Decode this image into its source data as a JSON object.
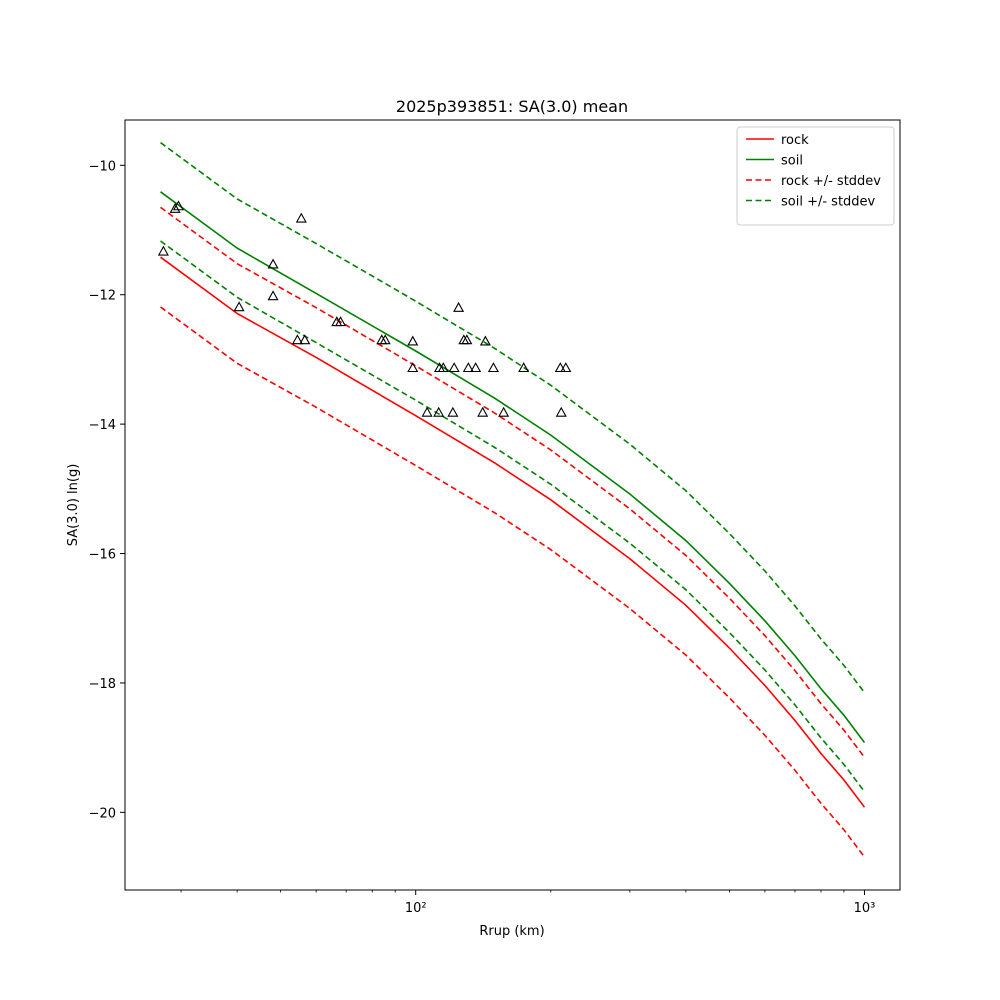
{
  "chart_data": {
    "type": "line",
    "title": "2025p393851: SA(3.0) mean",
    "xlabel": "Rrup (km)",
    "ylabel": "SA(3.0) ln(g)",
    "xscale": "log",
    "xlim": [
      22.5,
      1200
    ],
    "ylim": [
      -21.2,
      -9.3
    ],
    "x_ticks": [
      {
        "value": 100,
        "label": "10²"
      },
      {
        "value": 1000,
        "label": "10³"
      }
    ],
    "y_ticks": [
      {
        "value": -10,
        "label": "−10"
      },
      {
        "value": -12,
        "label": "−12"
      },
      {
        "value": -14,
        "label": "−14"
      },
      {
        "value": -16,
        "label": "−16"
      },
      {
        "value": -18,
        "label": "−18"
      },
      {
        "value": -20,
        "label": "−20"
      }
    ],
    "grid": false,
    "legend_position": "upper right",
    "series": [
      {
        "name": "rock",
        "color": "#ff0000",
        "style": "solid",
        "legend": true,
        "x": [
          27,
          40,
          60,
          100,
          150,
          200,
          300,
          400,
          500,
          600,
          700,
          800,
          900,
          1000
        ],
        "y": [
          -11.42,
          -12.29,
          -12.97,
          -13.87,
          -14.6,
          -15.17,
          -16.08,
          -16.8,
          -17.46,
          -18.04,
          -18.58,
          -19.09,
          -19.5,
          -19.92
        ]
      },
      {
        "name": "soil",
        "color": "#008000",
        "style": "solid",
        "legend": true,
        "x": [
          27,
          40,
          60,
          100,
          150,
          200,
          300,
          400,
          500,
          600,
          700,
          800,
          900,
          1000
        ],
        "y": [
          -10.41,
          -11.28,
          -11.98,
          -12.87,
          -13.6,
          -14.17,
          -15.08,
          -15.8,
          -16.46,
          -17.04,
          -17.58,
          -18.09,
          -18.5,
          -18.92
        ]
      },
      {
        "name": "rock +/- stddev",
        "color": "#ff0000",
        "style": "dashed",
        "legend": true,
        "x": [
          27,
          40,
          60,
          100,
          150,
          200,
          300,
          400,
          500,
          600,
          700,
          800,
          900,
          1000
        ],
        "y": [
          -10.65,
          -11.52,
          -12.2,
          -13.1,
          -13.83,
          -14.4,
          -15.31,
          -16.03,
          -16.69,
          -17.27,
          -17.81,
          -18.32,
          -18.73,
          -19.15
        ]
      },
      {
        "name": "rock +/- stddev",
        "color": "#ff0000",
        "style": "dashed",
        "legend": false,
        "x": [
          27,
          40,
          60,
          100,
          150,
          200,
          300,
          400,
          500,
          600,
          700,
          800,
          900,
          1000
        ],
        "y": [
          -12.19,
          -13.06,
          -13.74,
          -14.64,
          -15.37,
          -15.94,
          -16.85,
          -17.57,
          -18.23,
          -18.81,
          -19.35,
          -19.86,
          -20.27,
          -20.69
        ]
      },
      {
        "name": "soil +/- stddev",
        "color": "#008000",
        "style": "dashed",
        "legend": true,
        "x": [
          27,
          40,
          60,
          100,
          150,
          200,
          300,
          400,
          500,
          600,
          700,
          800,
          900,
          1000
        ],
        "y": [
          -9.65,
          -10.52,
          -11.21,
          -12.1,
          -12.83,
          -13.4,
          -14.31,
          -15.03,
          -15.69,
          -16.27,
          -16.81,
          -17.32,
          -17.73,
          -18.15
        ]
      },
      {
        "name": "soil +/- stddev",
        "color": "#008000",
        "style": "dashed",
        "legend": false,
        "x": [
          27,
          40,
          60,
          100,
          150,
          200,
          300,
          400,
          500,
          600,
          700,
          800,
          900,
          1000
        ],
        "y": [
          -11.17,
          -12.04,
          -12.74,
          -13.63,
          -14.36,
          -14.93,
          -15.84,
          -16.56,
          -17.22,
          -17.8,
          -18.34,
          -18.85,
          -19.26,
          -19.68
        ]
      }
    ],
    "observations": {
      "marker": "triangle",
      "color": "#000000",
      "points": [
        {
          "x": 29.1,
          "y": -10.67
        },
        {
          "x": 29.6,
          "y": -10.63
        },
        {
          "x": 27.4,
          "y": -11.33
        },
        {
          "x": 55.6,
          "y": -10.82
        },
        {
          "x": 48.1,
          "y": -11.53
        },
        {
          "x": 48.1,
          "y": -12.02
        },
        {
          "x": 40.4,
          "y": -12.19
        },
        {
          "x": 54.5,
          "y": -12.7
        },
        {
          "x": 56.6,
          "y": -12.7
        },
        {
          "x": 66.7,
          "y": -12.42
        },
        {
          "x": 68.0,
          "y": -12.42
        },
        {
          "x": 84.0,
          "y": -12.7
        },
        {
          "x": 85.5,
          "y": -12.7
        },
        {
          "x": 98.5,
          "y": -12.72
        },
        {
          "x": 98.5,
          "y": -13.13
        },
        {
          "x": 113.0,
          "y": -13.13
        },
        {
          "x": 115.2,
          "y": -13.13
        },
        {
          "x": 121.8,
          "y": -13.13
        },
        {
          "x": 124.6,
          "y": -12.2
        },
        {
          "x": 128.0,
          "y": -12.7
        },
        {
          "x": 130.0,
          "y": -12.7
        },
        {
          "x": 131.0,
          "y": -13.13
        },
        {
          "x": 136.0,
          "y": -13.13
        },
        {
          "x": 143.0,
          "y": -12.72
        },
        {
          "x": 149.0,
          "y": -13.13
        },
        {
          "x": 174.0,
          "y": -13.13
        },
        {
          "x": 210.0,
          "y": -13.13
        },
        {
          "x": 216.0,
          "y": -13.13
        },
        {
          "x": 106.0,
          "y": -13.82
        },
        {
          "x": 112.5,
          "y": -13.82
        },
        {
          "x": 121.0,
          "y": -13.82
        },
        {
          "x": 141.0,
          "y": -13.82
        },
        {
          "x": 157.0,
          "y": -13.82
        },
        {
          "x": 211.0,
          "y": -13.82
        }
      ]
    }
  }
}
